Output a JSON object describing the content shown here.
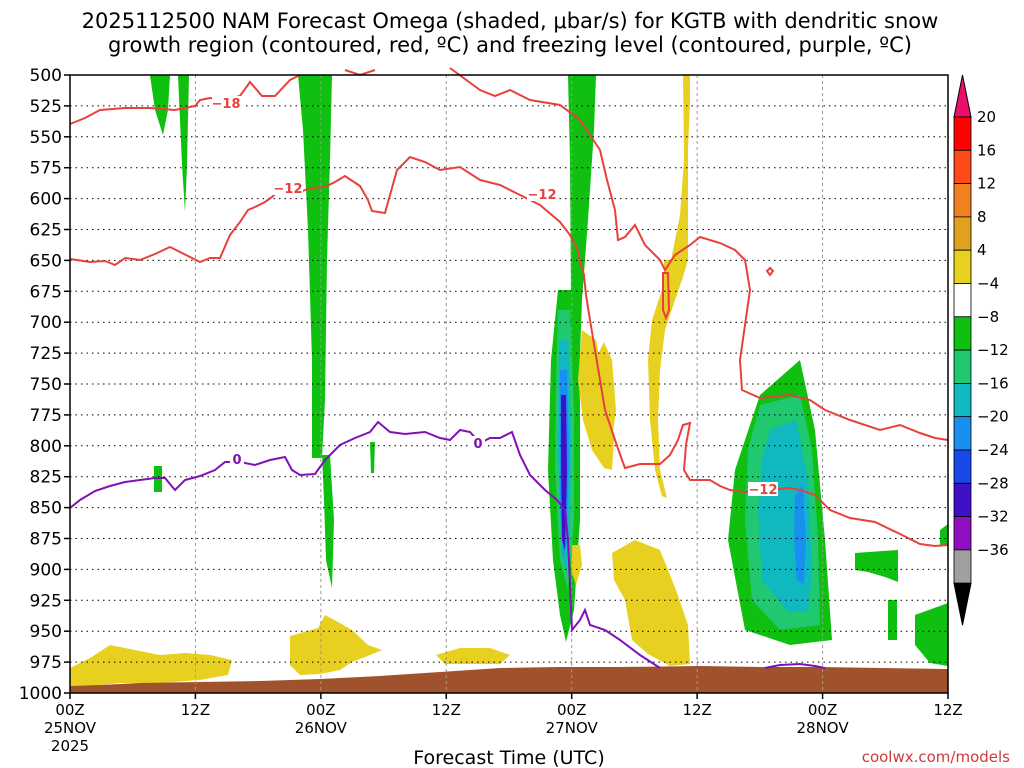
{
  "chart_data": {
    "type": "heatmap",
    "title_line1": "2025112500 NAM Forecast Omega (shaded, μbar/s) for KGTB with dendritic snow",
    "title_line2": "growth region (contoured, red, ºC) and freezing level (contoured, purple, ºC)",
    "xlabel": "Forecast Time (UTC)",
    "ylabel": "",
    "y_axis": {
      "ticks": [
        500,
        525,
        550,
        575,
        600,
        625,
        650,
        675,
        700,
        725,
        750,
        775,
        800,
        825,
        850,
        875,
        900,
        925,
        950,
        975,
        1000
      ],
      "range": [
        500,
        1000
      ],
      "inverted": true
    },
    "x_axis": {
      "range_hours": [
        0,
        84
      ],
      "ticks": [
        {
          "hour": 0,
          "line1": "00Z",
          "line2": "25NOV",
          "line3": "2025"
        },
        {
          "hour": 12,
          "line1": "12Z",
          "line2": "",
          "line3": ""
        },
        {
          "hour": 24,
          "line1": "00Z",
          "line2": "26NOV",
          "line3": ""
        },
        {
          "hour": 36,
          "line1": "12Z",
          "line2": "",
          "line3": ""
        },
        {
          "hour": 48,
          "line1": "00Z",
          "line2": "27NOV",
          "line3": ""
        },
        {
          "hour": 60,
          "line1": "12Z",
          "line2": "",
          "line3": ""
        },
        {
          "hour": 72,
          "line1": "00Z",
          "line2": "28NOV",
          "line3": ""
        },
        {
          "hour": 84,
          "line1": "12Z",
          "line2": "",
          "line3": ""
        }
      ]
    },
    "grid": true,
    "colorbar": {
      "labels": [
        "20",
        "16",
        "12",
        "8",
        "4",
        "−4",
        "−8",
        "−12",
        "−16",
        "−20",
        "−24",
        "−28",
        "−32",
        "−36"
      ],
      "colors": [
        "#ff0000",
        "#ff4a1a",
        "#f08020",
        "#e0a020",
        "#e8d020",
        "#ffffff",
        "#10c010",
        "#20c870",
        "#10b8c0",
        "#1890f0",
        "#1848e8",
        "#4010c8",
        "#9010c0",
        "#a0a0a0"
      ],
      "top_color": "#e8106a",
      "bottom_color": "#000000"
    },
    "contour_labels": {
      "minus18": "−18",
      "minus12_a": "−12",
      "minus12_b": "−12",
      "minus12_c": "−12",
      "zero_a": "0",
      "zero_b": "0"
    },
    "colors": {
      "dgz": "#e8403c",
      "freezing": "#8010b8",
      "terrain": "#a0522d"
    },
    "credit": "coolwx.com/models"
  }
}
